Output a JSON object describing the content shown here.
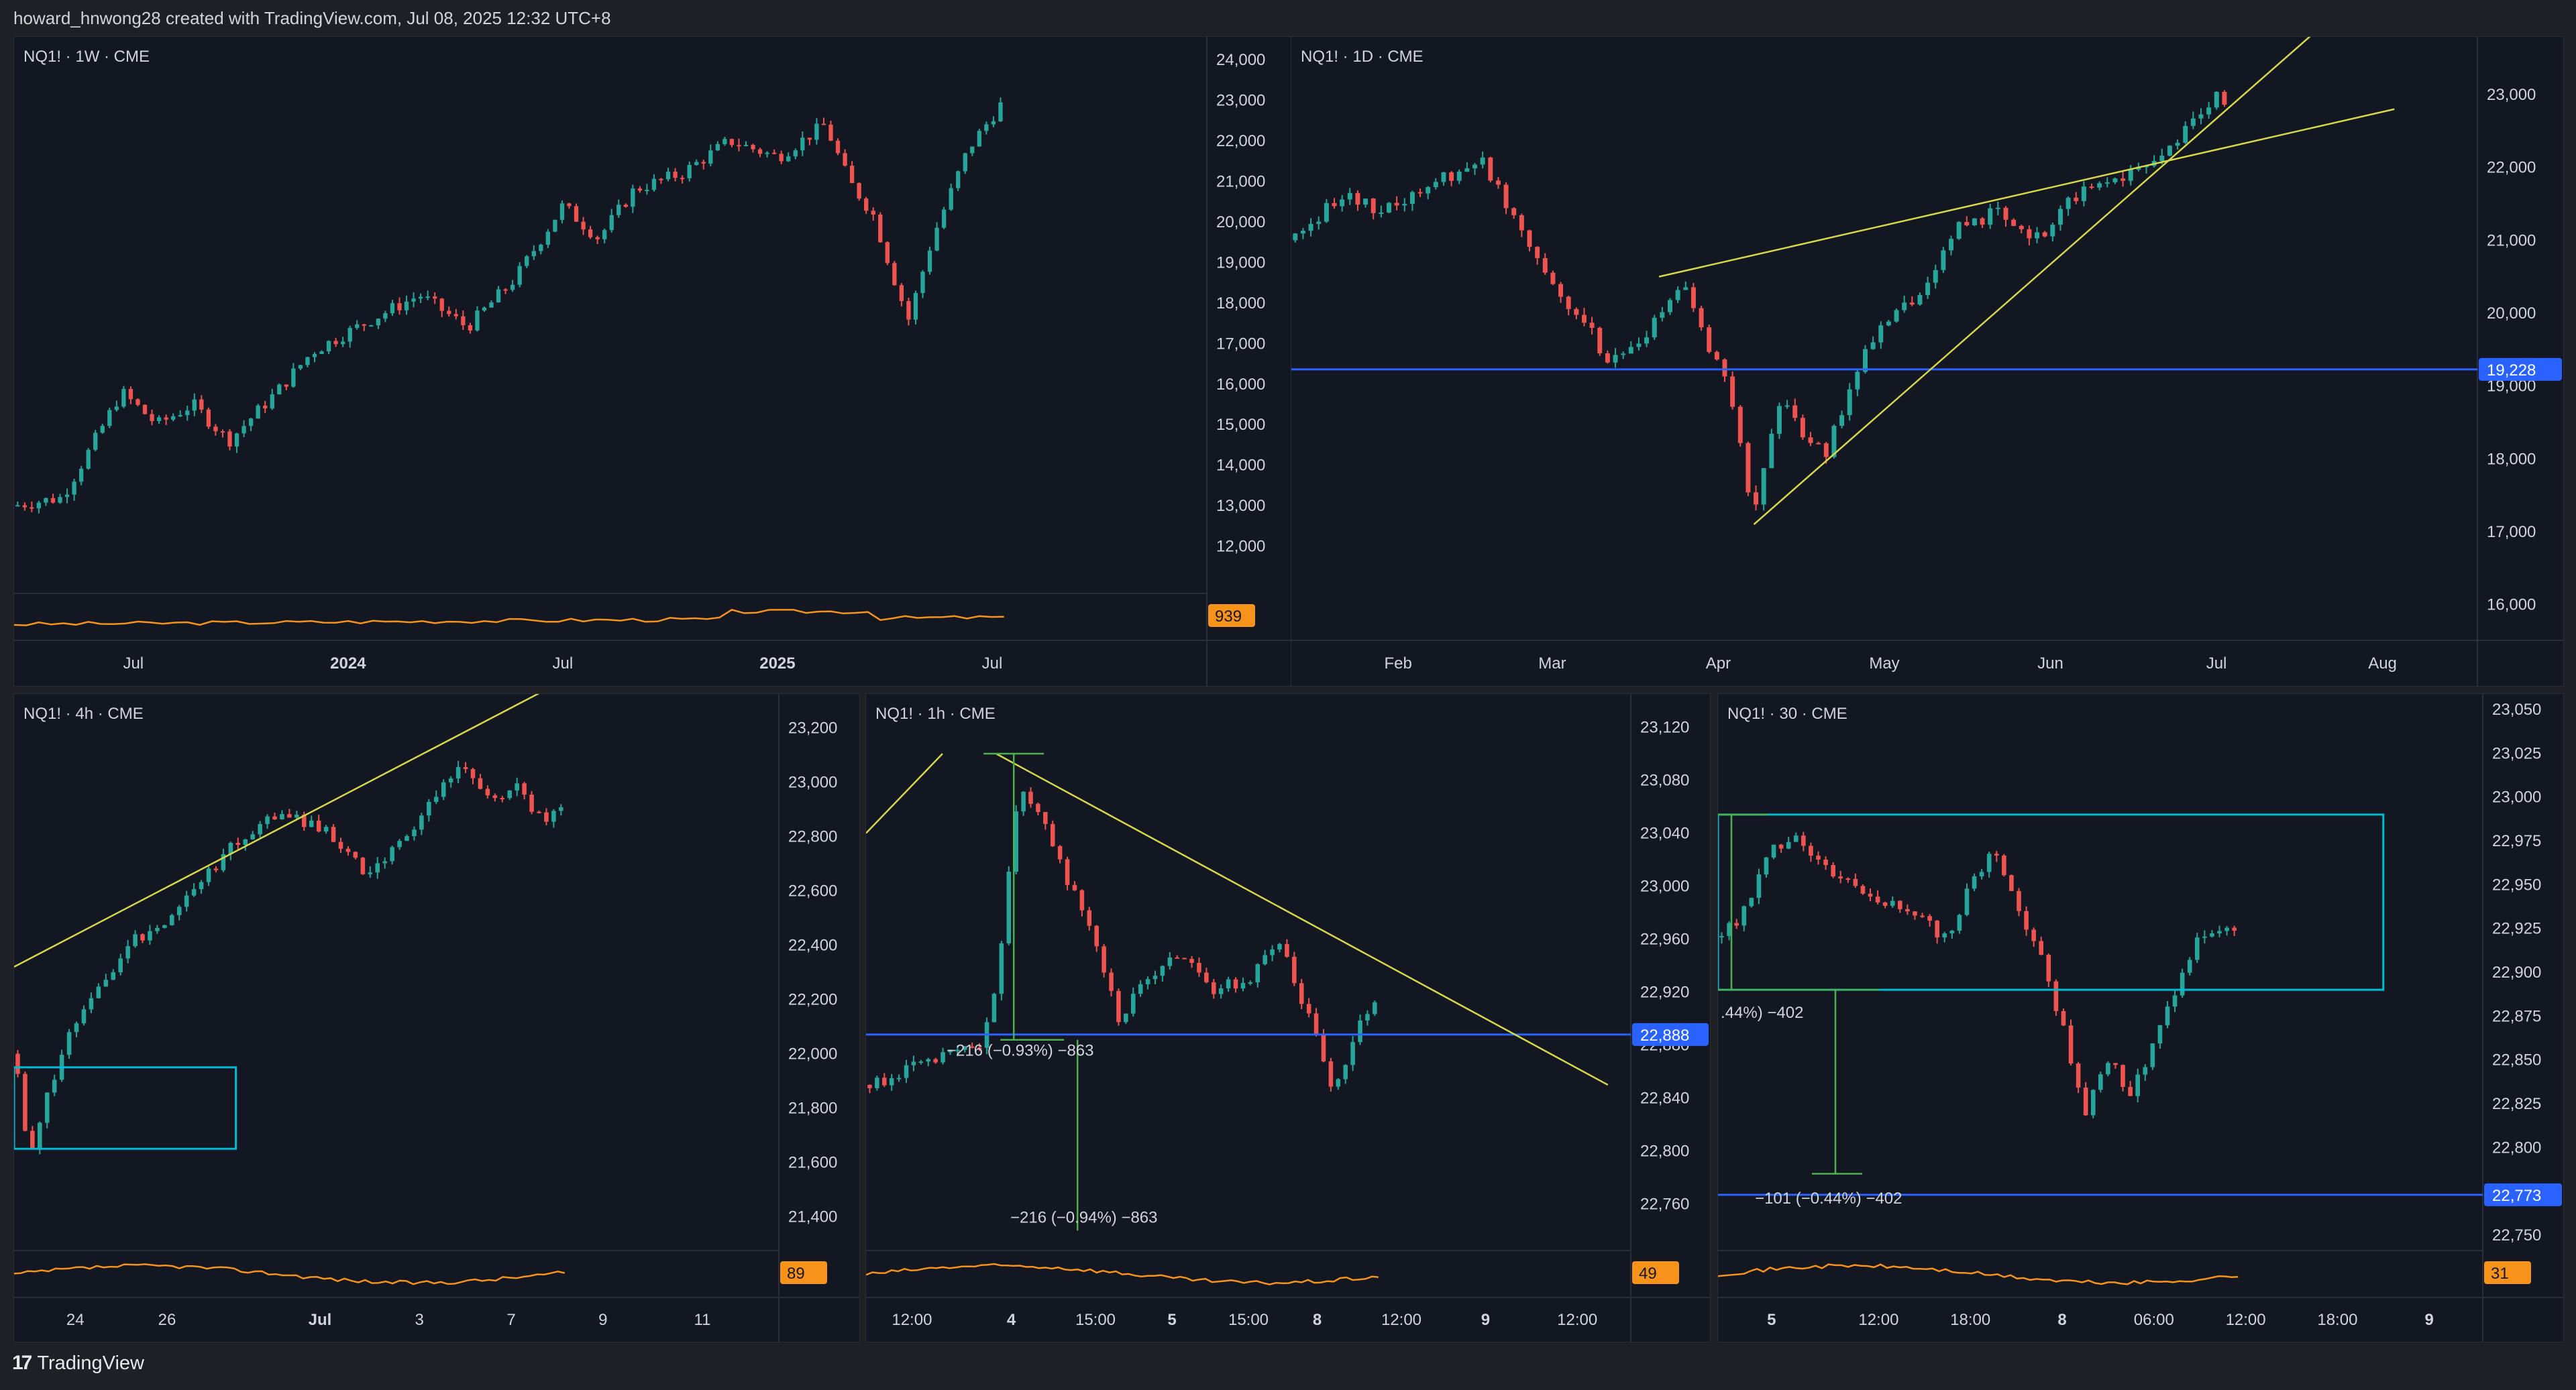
{
  "header": {
    "text": "howard_hnwong28 created with TradingView.com, Jul 08, 2025 12:32 UTC+8"
  },
  "footer": {
    "brand": "TradingView",
    "logo": "tradingview-logo-icon"
  },
  "colors": {
    "up": "#26a69a",
    "down": "#ef5350",
    "trendline": "#d8d84a",
    "hline": "#2962ff",
    "box": "#00bcd4",
    "volume": "#f7931a",
    "measure": "#4caf50",
    "panel_bg": "#131722"
  },
  "chart_data": [
    {
      "type": "candlestick",
      "ticker": "NQ1! · 1W · CME",
      "ylim": [
        11000,
        24400
      ],
      "y_ticks": [
        "24,000",
        "23,000",
        "22,000",
        "21,000",
        "20,000",
        "19,000",
        "18,000",
        "17,000",
        "16,000",
        "15,000",
        "14,000",
        "13,000",
        "12,000"
      ],
      "y_tick_values": [
        24000,
        23000,
        22000,
        21000,
        20000,
        19000,
        18000,
        17000,
        16000,
        15000,
        14000,
        13000,
        12000
      ],
      "x_ticks": [
        {
          "label": "Jul",
          "pos": 0.1
        },
        {
          "label": "2024",
          "pos": 0.28,
          "bold": true
        },
        {
          "label": "Jul",
          "pos": 0.46
        },
        {
          "label": "2025",
          "pos": 0.64,
          "bold": true
        },
        {
          "label": "Jul",
          "pos": 0.82
        }
      ],
      "series_path": [
        [
          0,
          13000
        ],
        [
          0.04,
          13200
        ],
        [
          0.06,
          14200
        ],
        [
          0.09,
          15800
        ],
        [
          0.12,
          15000
        ],
        [
          0.15,
          15500
        ],
        [
          0.18,
          14600
        ],
        [
          0.22,
          15800
        ],
        [
          0.25,
          16800
        ],
        [
          0.3,
          17600
        ],
        [
          0.34,
          18200
        ],
        [
          0.38,
          17400
        ],
        [
          0.42,
          18600
        ],
        [
          0.46,
          20400
        ],
        [
          0.49,
          19600
        ],
        [
          0.52,
          20800
        ],
        [
          0.56,
          21200
        ],
        [
          0.6,
          22000
        ],
        [
          0.64,
          21600
        ],
        [
          0.68,
          22400
        ],
        [
          0.7,
          21000
        ],
        [
          0.72,
          20200
        ],
        [
          0.74,
          18400
        ],
        [
          0.75,
          17600
        ],
        [
          0.77,
          19600
        ],
        [
          0.8,
          21800
        ],
        [
          0.83,
          23000
        ]
      ],
      "candle_count": 140,
      "volume_badge": "939"
    },
    {
      "type": "candlestick",
      "ticker": "NQ1! · 1D · CME",
      "ylim": [
        15600,
        23700
      ],
      "y_ticks": [
        "23,000",
        "22,000",
        "21,000",
        "20,000",
        "19,000",
        "18,000",
        "17,000",
        "16,000"
      ],
      "y_tick_values": [
        23000,
        22000,
        21000,
        20000,
        19000,
        18000,
        17000,
        16000
      ],
      "x_ticks": [
        {
          "label": "Feb",
          "pos": 0.09
        },
        {
          "label": "Mar",
          "pos": 0.22
        },
        {
          "label": "Apr",
          "pos": 0.36
        },
        {
          "label": "May",
          "pos": 0.5
        },
        {
          "label": "Jun",
          "pos": 0.64
        },
        {
          "label": "Jul",
          "pos": 0.78
        },
        {
          "label": "Aug",
          "pos": 0.92
        }
      ],
      "series_path": [
        [
          0,
          21000
        ],
        [
          0.04,
          21600
        ],
        [
          0.08,
          21400
        ],
        [
          0.12,
          21800
        ],
        [
          0.16,
          22100
        ],
        [
          0.19,
          21300
        ],
        [
          0.22,
          20400
        ],
        [
          0.25,
          19800
        ],
        [
          0.27,
          19300
        ],
        [
          0.3,
          19700
        ],
        [
          0.33,
          20400
        ],
        [
          0.35,
          19600
        ],
        [
          0.37,
          19000
        ],
        [
          0.38,
          18000
        ],
        [
          0.39,
          17200
        ],
        [
          0.41,
          18800
        ],
        [
          0.43,
          18400
        ],
        [
          0.45,
          18000
        ],
        [
          0.48,
          19400
        ],
        [
          0.51,
          20000
        ],
        [
          0.54,
          20400
        ],
        [
          0.56,
          21200
        ],
        [
          0.6,
          21400
        ],
        [
          0.63,
          21000
        ],
        [
          0.66,
          21600
        ],
        [
          0.7,
          21900
        ],
        [
          0.73,
          22000
        ],
        [
          0.76,
          22600
        ],
        [
          0.78,
          23000
        ],
        [
          0.79,
          22900
        ]
      ],
      "candle_count": 120,
      "hline": {
        "value": 19228,
        "label": "19,228"
      },
      "trendlines": [
        [
          [
            0.31,
            20500
          ],
          [
            0.93,
            22800
          ]
        ],
        [
          [
            0.39,
            17100
          ],
          [
            0.88,
            24100
          ]
        ]
      ]
    },
    {
      "type": "candlestick",
      "ticker": "NQ1! · 4h · CME",
      "ylim": [
        21300,
        23300
      ],
      "y_ticks": [
        "23,200",
        "23,000",
        "22,800",
        "22,600",
        "22,400",
        "22,200",
        "22,000",
        "21,800",
        "21,600",
        "21,400"
      ],
      "y_tick_values": [
        23200,
        23000,
        22800,
        22600,
        22400,
        22200,
        22000,
        21800,
        21600,
        21400
      ],
      "x_ticks": [
        {
          "label": "24",
          "pos": 0.08
        },
        {
          "label": "26",
          "pos": 0.2
        },
        {
          "label": "Jul",
          "pos": 0.4,
          "bold": true
        },
        {
          "label": "3",
          "pos": 0.53
        },
        {
          "label": "7",
          "pos": 0.65
        },
        {
          "label": "9",
          "pos": 0.77
        },
        {
          "label": "11",
          "pos": 0.9
        }
      ],
      "series_path": [
        [
          0,
          22000
        ],
        [
          0.02,
          21600
        ],
        [
          0.06,
          22000
        ],
        [
          0.1,
          22200
        ],
        [
          0.15,
          22400
        ],
        [
          0.2,
          22500
        ],
        [
          0.28,
          22750
        ],
        [
          0.35,
          22900
        ],
        [
          0.38,
          22850
        ],
        [
          0.42,
          22800
        ],
        [
          0.46,
          22650
        ],
        [
          0.5,
          22750
        ],
        [
          0.55,
          22950
        ],
        [
          0.58,
          23050
        ],
        [
          0.62,
          22950
        ],
        [
          0.66,
          22980
        ],
        [
          0.69,
          22850
        ],
        [
          0.72,
          22900
        ]
      ],
      "candle_count": 75,
      "volume_badge": "89",
      "trendlines": [
        [
          [
            0,
            22320
          ],
          [
            0.77,
            23450
          ]
        ]
      ],
      "box": [
        [
          0,
          21950
        ],
        [
          0.29,
          21650
        ]
      ]
    },
    {
      "type": "candlestick",
      "ticker": "NQ1! · 1h · CME",
      "ylim": [
        22730,
        23140
      ],
      "y_ticks": [
        "23,120",
        "23,080",
        "23,040",
        "23,000",
        "22,960",
        "22,920",
        "22,880",
        "22,840",
        "22,800",
        "22,760"
      ],
      "y_tick_values": [
        23120,
        23080,
        23040,
        23000,
        22960,
        22920,
        22880,
        22840,
        22800,
        22760
      ],
      "x_ticks": [
        {
          "label": "12:00",
          "pos": 0.06
        },
        {
          "label": "4",
          "pos": 0.19,
          "bold": true
        },
        {
          "label": "15:00",
          "pos": 0.3
        },
        {
          "label": "5",
          "pos": 0.4,
          "bold": true
        },
        {
          "label": "15:00",
          "pos": 0.5
        },
        {
          "label": "8",
          "pos": 0.59,
          "bold": true
        },
        {
          "label": "12:00",
          "pos": 0.7
        },
        {
          "label": "9",
          "pos": 0.81,
          "bold": true
        },
        {
          "label": "12:00",
          "pos": 0.93
        }
      ],
      "series_path": [
        [
          0,
          22850
        ],
        [
          0.05,
          22860
        ],
        [
          0.1,
          22870
        ],
        [
          0.15,
          22880
        ],
        [
          0.17,
          22920
        ],
        [
          0.2,
          23080
        ],
        [
          0.22,
          23060
        ],
        [
          0.26,
          23010
        ],
        [
          0.3,
          22960
        ],
        [
          0.33,
          22900
        ],
        [
          0.37,
          22930
        ],
        [
          0.41,
          22950
        ],
        [
          0.45,
          22920
        ],
        [
          0.5,
          22930
        ],
        [
          0.54,
          22960
        ],
        [
          0.58,
          22900
        ],
        [
          0.61,
          22850
        ],
        [
          0.63,
          22870
        ],
        [
          0.65,
          22900
        ],
        [
          0.67,
          22920
        ]
      ],
      "candle_count": 70,
      "volume_badge": "49",
      "hline": {
        "value": 22888,
        "label": "22,888"
      },
      "trendlines": [
        [
          [
            0,
            23040
          ],
          [
            0.1,
            23100
          ]
        ],
        [
          [
            0.17,
            23100
          ],
          [
            0.97,
            22850
          ]
        ]
      ],
      "measure_labels": [
        "−216 (−0.93%) −863",
        "−216 (−0.94%) −863"
      ]
    },
    {
      "type": "candlestick",
      "ticker": "NQ1! · 30 · CME",
      "ylim": [
        22745,
        23055
      ],
      "y_ticks": [
        "23,050",
        "23,025",
        "23,000",
        "22,975",
        "22,950",
        "22,925",
        "22,900",
        "22,875",
        "22,850",
        "22,825",
        "22,800",
        "22,775",
        "22,750"
      ],
      "y_tick_values": [
        23050,
        23025,
        23000,
        22975,
        22950,
        22925,
        22900,
        22875,
        22850,
        22825,
        22800,
        22775,
        22750
      ],
      "x_ticks": [
        {
          "label": "5",
          "pos": 0.07,
          "bold": true
        },
        {
          "label": "12:00",
          "pos": 0.21
        },
        {
          "label": "18:00",
          "pos": 0.33
        },
        {
          "label": "8",
          "pos": 0.45,
          "bold": true
        },
        {
          "label": "06:00",
          "pos": 0.57
        },
        {
          "label": "12:00",
          "pos": 0.69
        },
        {
          "label": "18:00",
          "pos": 0.81
        },
        {
          "label": "9",
          "pos": 0.93,
          "bold": true
        }
      ],
      "series_path": [
        [
          0,
          22920
        ],
        [
          0.03,
          22930
        ],
        [
          0.07,
          22970
        ],
        [
          0.1,
          22980
        ],
        [
          0.14,
          22960
        ],
        [
          0.18,
          22950
        ],
        [
          0.22,
          22940
        ],
        [
          0.26,
          22930
        ],
        [
          0.3,
          22920
        ],
        [
          0.33,
          22950
        ],
        [
          0.36,
          22970
        ],
        [
          0.39,
          22940
        ],
        [
          0.42,
          22910
        ],
        [
          0.45,
          22870
        ],
        [
          0.48,
          22820
        ],
        [
          0.51,
          22850
        ],
        [
          0.54,
          22830
        ],
        [
          0.57,
          22860
        ],
        [
          0.6,
          22890
        ],
        [
          0.63,
          22920
        ],
        [
          0.66,
          22925
        ],
        [
          0.68,
          22920
        ]
      ],
      "candle_count": 70,
      "volume_badge": "31",
      "hline": {
        "value": 22773,
        "label": "22,773"
      },
      "box": [
        [
          0,
          22990
        ],
        [
          0.87,
          22890
        ]
      ],
      "measure_labels": [
        ".44%) −402",
        "−101 (−0.44%) −402"
      ]
    }
  ]
}
